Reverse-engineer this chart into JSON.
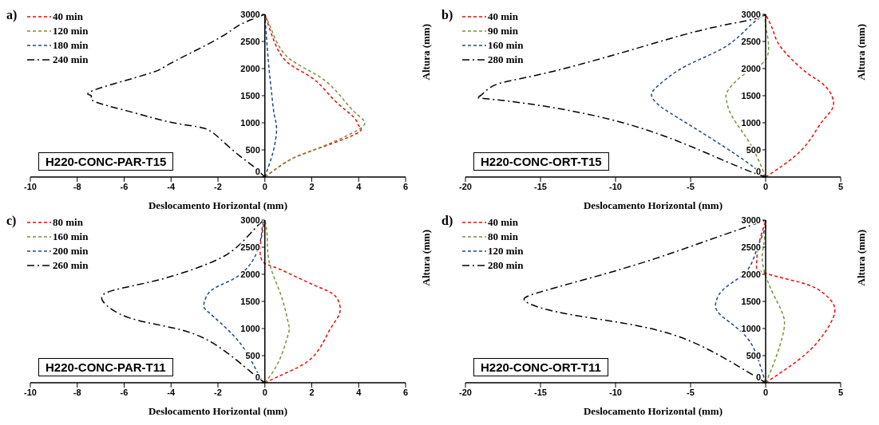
{
  "chart_data": [
    {
      "type": "line",
      "title": "a)",
      "xlabel": "Deslocamento Horizontal (mm)",
      "ylabel": "Altura (mm)",
      "xlim": [
        -10,
        6
      ],
      "xticks": [
        -10,
        -8,
        -6,
        -4,
        -2,
        0,
        2,
        4,
        6
      ],
      "ylim": [
        0,
        3000
      ],
      "yticks": [
        0,
        500,
        1000,
        1500,
        2000,
        2500,
        3000
      ],
      "legend": "top left",
      "annotations": [
        "H220-CONC-PAR-T15"
      ],
      "series": [
        {
          "name": "40 min",
          "color": "#ff0000",
          "line_style": "dashed",
          "x": [
            0,
            1,
            2.1,
            3.9,
            4,
            3.8,
            3,
            2.1,
            1,
            0.4,
            0
          ],
          "values": [
            0,
            300,
            500,
            800,
            950,
            1100,
            1400,
            1800,
            2100,
            2500,
            3000
          ]
        },
        {
          "name": "120 min",
          "color": "#77933c",
          "line_style": "dashed",
          "x": [
            0,
            1,
            2.1,
            3.9,
            4.2,
            3.6,
            2.5,
            1,
            0.3,
            0
          ],
          "values": [
            0,
            300,
            500,
            850,
            1050,
            1300,
            1800,
            2200,
            2700,
            3000
          ]
        },
        {
          "name": "180 min",
          "color": "#1f497d",
          "line_style": "dashed",
          "x": [
            0,
            0.2,
            0.4,
            0.5,
            0.4,
            0.3,
            0.2,
            0.1,
            0
          ],
          "values": [
            0,
            250,
            550,
            900,
            1150,
            1500,
            1900,
            2400,
            3000
          ]
        },
        {
          "name": "240 min",
          "color": "#000000",
          "line_style": "dashdot",
          "x": [
            0,
            -0.5,
            -1.1,
            -1.9,
            -2.6,
            -3.9,
            -5.7,
            -7.3,
            -7.4,
            -7.3,
            -5,
            -4,
            -2,
            -1.1,
            0
          ],
          "values": [
            0,
            200,
            400,
            700,
            900,
            1000,
            1200,
            1400,
            1500,
            1600,
            1900,
            2100,
            2550,
            2800,
            3000
          ]
        }
      ]
    },
    {
      "type": "line",
      "title": "b)",
      "xlabel": "Deslocamento Horizontal (mm)",
      "ylabel": "Altura (mm)",
      "xlim": [
        -20,
        5
      ],
      "xticks": [
        -20,
        -15,
        -10,
        -5,
        0,
        5
      ],
      "ylim": [
        0,
        3000
      ],
      "yticks": [
        0,
        500,
        1000,
        1500,
        2000,
        2500,
        3000
      ],
      "legend": "top left",
      "annotations": [
        "H220-CONC-ORT-T15"
      ],
      "series": [
        {
          "name": "40 min",
          "color": "#ff0000",
          "line_style": "dashed",
          "x": [
            0,
            2.4,
            3.7,
            4.5,
            4.2,
            3.4,
            2.4,
            1,
            0.5,
            0
          ],
          "values": [
            0,
            500,
            1000,
            1300,
            1600,
            1800,
            2000,
            2400,
            2700,
            3000
          ]
        },
        {
          "name": "90 min",
          "color": "#77933c",
          "line_style": "dashed",
          "x": [
            0,
            -1,
            -2.2,
            -2.6,
            -2.5,
            -1.4,
            -0.2,
            0.2,
            0,
            0
          ],
          "values": [
            0,
            600,
            1100,
            1400,
            1600,
            1900,
            2100,
            2400,
            2800,
            3000
          ]
        },
        {
          "name": "160 min",
          "color": "#1f497d",
          "line_style": "dashed",
          "x": [
            0,
            -1.9,
            -5.3,
            -7,
            -7.6,
            -7.1,
            -5.3,
            -2.7,
            -1,
            0
          ],
          "values": [
            0,
            400,
            1000,
            1300,
            1500,
            1700,
            2050,
            2400,
            2800,
            3000
          ]
        },
        {
          "name": "280 min",
          "color": "#000000",
          "line_style": "dashdot",
          "x": [
            0,
            -1.9,
            -5.3,
            -9.5,
            -14.6,
            -18.8,
            -19,
            -18,
            -14.9,
            -9.5,
            -4.4,
            -1,
            0
          ],
          "values": [
            0,
            200,
            600,
            1000,
            1300,
            1450,
            1500,
            1700,
            1900,
            2300,
            2700,
            2900,
            3000
          ]
        }
      ]
    },
    {
      "type": "line",
      "title": "c)",
      "xlabel": "Deslocamento Horizontal (mm)",
      "ylabel": "Altura (mm)",
      "xlim": [
        -10,
        6
      ],
      "xticks": [
        -10,
        -8,
        -6,
        -4,
        -2,
        0,
        2,
        4,
        6
      ],
      "ylim": [
        0,
        3000
      ],
      "yticks": [
        0,
        500,
        1000,
        1500,
        2000,
        2500,
        3000
      ],
      "legend": "top left",
      "annotations": [
        "H220-CONC-PAR-T11"
      ],
      "series": [
        {
          "name": "80 min",
          "color": "#ff0000",
          "line_style": "dashed",
          "x": [
            0,
            1,
            2.1,
            2.8,
            3.2,
            3,
            2.1,
            0.6,
            0,
            -0.2,
            -0.1,
            0
          ],
          "values": [
            0,
            200,
            500,
            1000,
            1300,
            1600,
            1800,
            2100,
            2200,
            2400,
            2800,
            3000
          ]
        },
        {
          "name": "160 min",
          "color": "#77933c",
          "line_style": "dashed",
          "x": [
            0,
            0.6,
            1,
            1,
            0.7,
            0.2,
            0.1,
            0
          ],
          "values": [
            0,
            400,
            900,
            1100,
            1600,
            2200,
            2700,
            3000
          ]
        },
        {
          "name": "200 min",
          "color": "#1f497d",
          "line_style": "dashed",
          "x": [
            0,
            -0.2,
            -0.7,
            -1.4,
            -2.4,
            -2.6,
            -2.3,
            -1.4,
            -0.6,
            -0.2,
            -0.1,
            0
          ],
          "values": [
            0,
            100,
            500,
            900,
            1300,
            1450,
            1700,
            1900,
            2200,
            2600,
            2900,
            3000
          ]
        },
        {
          "name": "260 min",
          "color": "#000000",
          "line_style": "dashdot",
          "x": [
            0,
            -0.6,
            -2.1,
            -3.8,
            -5.8,
            -6.9,
            -6.5,
            -4.5,
            -2.4,
            -1.2,
            -0.3,
            0
          ],
          "values": [
            0,
            200,
            700,
            1000,
            1200,
            1500,
            1700,
            1900,
            2200,
            2500,
            2900,
            3000
          ]
        }
      ]
    },
    {
      "type": "line",
      "title": "d)",
      "xlabel": "Deslocamento Horizontal (mm)",
      "ylabel": "Altura (mm)",
      "xlim": [
        -20,
        5
      ],
      "xticks": [
        -20,
        -15,
        -10,
        -5,
        0,
        5
      ],
      "ylim": [
        0,
        3000
      ],
      "yticks": [
        0,
        500,
        1000,
        1500,
        2000,
        2500,
        3000
      ],
      "legend": "top left",
      "annotations": [
        "H220-CONC-ORT-T11"
      ],
      "series": [
        {
          "name": "40 min",
          "color": "#ff0000",
          "line_style": "dashed",
          "x": [
            0,
            1.6,
            3.3,
            4.5,
            4.4,
            3.3,
            1.6,
            -0.3,
            -0.6,
            -0.5,
            -0.1,
            0
          ],
          "values": [
            0,
            300,
            700,
            1200,
            1500,
            1750,
            1900,
            2050,
            2200,
            2500,
            2900,
            3000
          ]
        },
        {
          "name": "80 min",
          "color": "#77933c",
          "line_style": "dashed",
          "x": [
            0,
            0.6,
            1.2,
            1.1,
            0.4,
            -0.2,
            -0.1,
            0
          ],
          "values": [
            0,
            400,
            950,
            1300,
            1700,
            2200,
            2600,
            3000
          ]
        },
        {
          "name": "120 min",
          "color": "#1f497d",
          "line_style": "dashed",
          "x": [
            0,
            -0.4,
            -1.3,
            -3,
            -3.3,
            -2.7,
            -1.3,
            -0.6,
            -0.1,
            0
          ],
          "values": [
            0,
            350,
            850,
            1250,
            1500,
            1750,
            2050,
            2450,
            2800,
            3000
          ]
        },
        {
          "name": "280 min",
          "color": "#000000",
          "line_style": "dashdot",
          "x": [
            0,
            -1.8,
            -5.3,
            -9.5,
            -13.8,
            -16,
            -15.3,
            -12.1,
            -7.8,
            -3.6,
            -1,
            0
          ],
          "values": [
            0,
            300,
            800,
            1100,
            1300,
            1500,
            1650,
            1900,
            2250,
            2650,
            2900,
            3000
          ]
        }
      ]
    }
  ]
}
